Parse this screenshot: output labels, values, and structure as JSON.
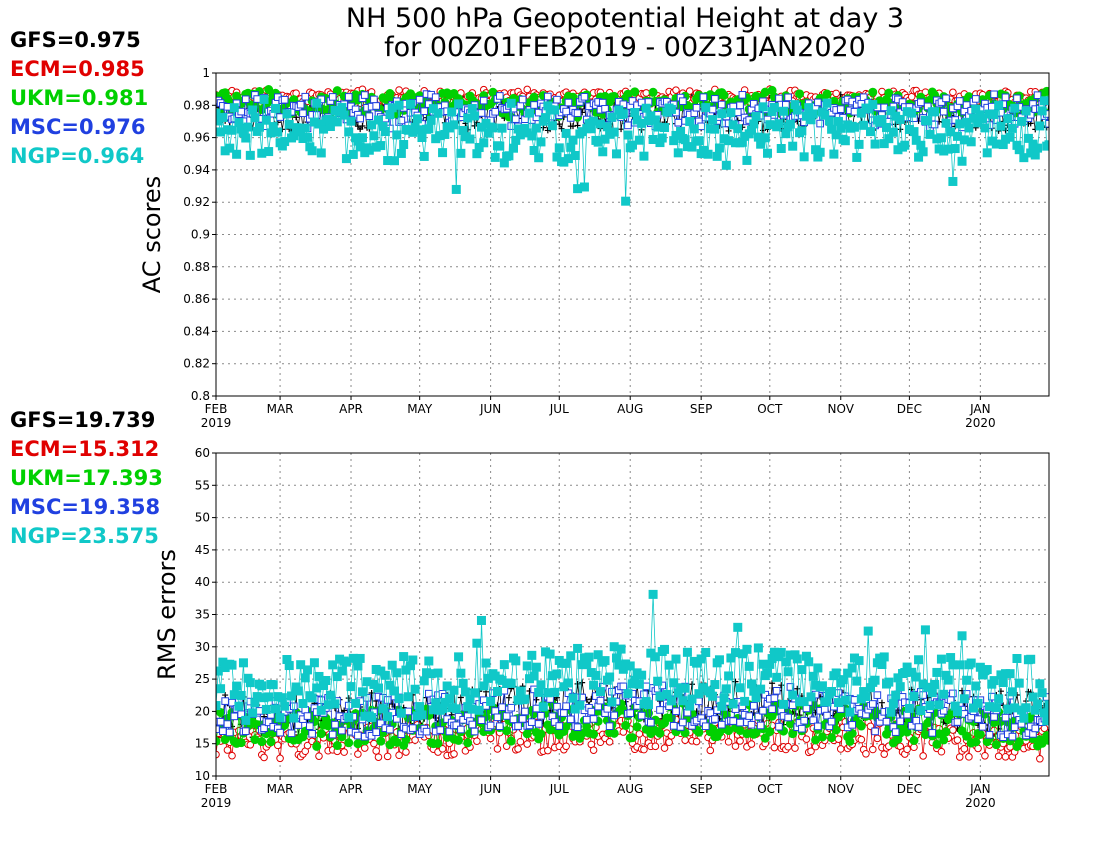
{
  "title": {
    "line1": "NH 500 hPa Geopotential Height at day 3",
    "line2": "for 00Z01FEB2019 - 00Z31JAN2020"
  },
  "colors": {
    "GFS": "#000000",
    "ECM": "#e00000",
    "UKM": "#00d000",
    "MSC": "#2040e0",
    "NGP": "#10c8c8"
  },
  "x_ticks": [
    {
      "day": 0,
      "label": "FEB",
      "sub": "2019"
    },
    {
      "day": 28,
      "label": "MAR",
      "sub": ""
    },
    {
      "day": 59,
      "label": "APR",
      "sub": ""
    },
    {
      "day": 89,
      "label": "MAY",
      "sub": ""
    },
    {
      "day": 120,
      "label": "JUN",
      "sub": ""
    },
    {
      "day": 150,
      "label": "JUL",
      "sub": ""
    },
    {
      "day": 181,
      "label": "AUG",
      "sub": ""
    },
    {
      "day": 212,
      "label": "SEP",
      "sub": ""
    },
    {
      "day": 242,
      "label": "OCT",
      "sub": ""
    },
    {
      "day": 273,
      "label": "NOV",
      "sub": ""
    },
    {
      "day": 303,
      "label": "DEC",
      "sub": ""
    },
    {
      "day": 334,
      "label": "JAN",
      "sub": "2020"
    }
  ],
  "chart_data": [
    {
      "type": "line",
      "ylabel": "AC scores",
      "ylim": [
        0.8,
        1.0
      ],
      "xlim_days": [
        0,
        364
      ],
      "yticks": [
        "0.8",
        "0.82",
        "0.84",
        "0.86",
        "0.88",
        "0.9",
        "0.92",
        "0.94",
        "0.96",
        "0.98",
        "1"
      ],
      "grid": true,
      "series": [
        {
          "name": "GFS",
          "mean": "0.975",
          "base": 0.975,
          "amp": 0.01
        },
        {
          "name": "ECM",
          "mean": "0.985",
          "base": 0.985,
          "amp": 0.004
        },
        {
          "name": "UKM",
          "mean": "0.981",
          "base": 0.981,
          "amp": 0.007
        },
        {
          "name": "MSC",
          "mean": "0.976",
          "base": 0.976,
          "amp": 0.009
        },
        {
          "name": "NGP",
          "mean": "0.964",
          "base": 0.964,
          "amp": 0.016
        }
      ]
    },
    {
      "type": "line",
      "ylabel": "RMS errors",
      "ylim": [
        10,
        60
      ],
      "xlim_days": [
        0,
        364
      ],
      "yticks": [
        "10",
        "15",
        "20",
        "25",
        "30",
        "35",
        "40",
        "45",
        "50",
        "55",
        "60"
      ],
      "grid": true,
      "series": [
        {
          "name": "GFS",
          "mean": "19.739",
          "base": 19.739,
          "amp": 3.5
        },
        {
          "name": "ECM",
          "mean": "15.312",
          "base": 15.312,
          "amp": 2.5
        },
        {
          "name": "UKM",
          "mean": "17.393",
          "base": 17.393,
          "amp": 2.8
        },
        {
          "name": "MSC",
          "mean": "19.358",
          "base": 19.358,
          "amp": 3.3
        },
        {
          "name": "NGP",
          "mean": "23.575",
          "base": 23.575,
          "amp": 4.8
        }
      ]
    }
  ]
}
